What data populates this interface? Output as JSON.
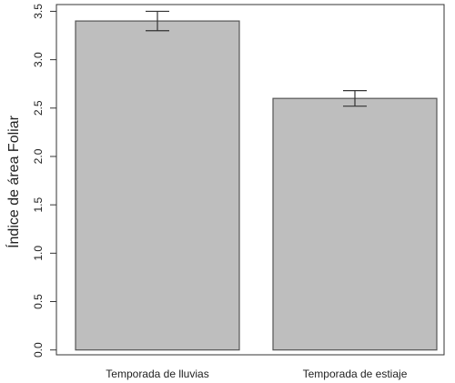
{
  "chart_data": {
    "type": "bar",
    "y_label": "Índice de área Foliar",
    "categories": [
      "Temporada de lluvias",
      "Temporada de estiaje"
    ],
    "values": [
      3.4,
      2.6
    ],
    "errors": [
      0.1,
      0.08
    ],
    "color": "#bebebe",
    "ylim": [
      -0.05,
      3.57
    ],
    "yticks": [
      {
        "value": 0,
        "label": "0.0"
      },
      0.5,
      {
        "value": 1,
        "label": "1.0"
      },
      1.5,
      {
        "value": 2,
        "label": "2.0"
      },
      2.5,
      {
        "value": 3,
        "label": "3.0"
      },
      3.5
    ]
  }
}
